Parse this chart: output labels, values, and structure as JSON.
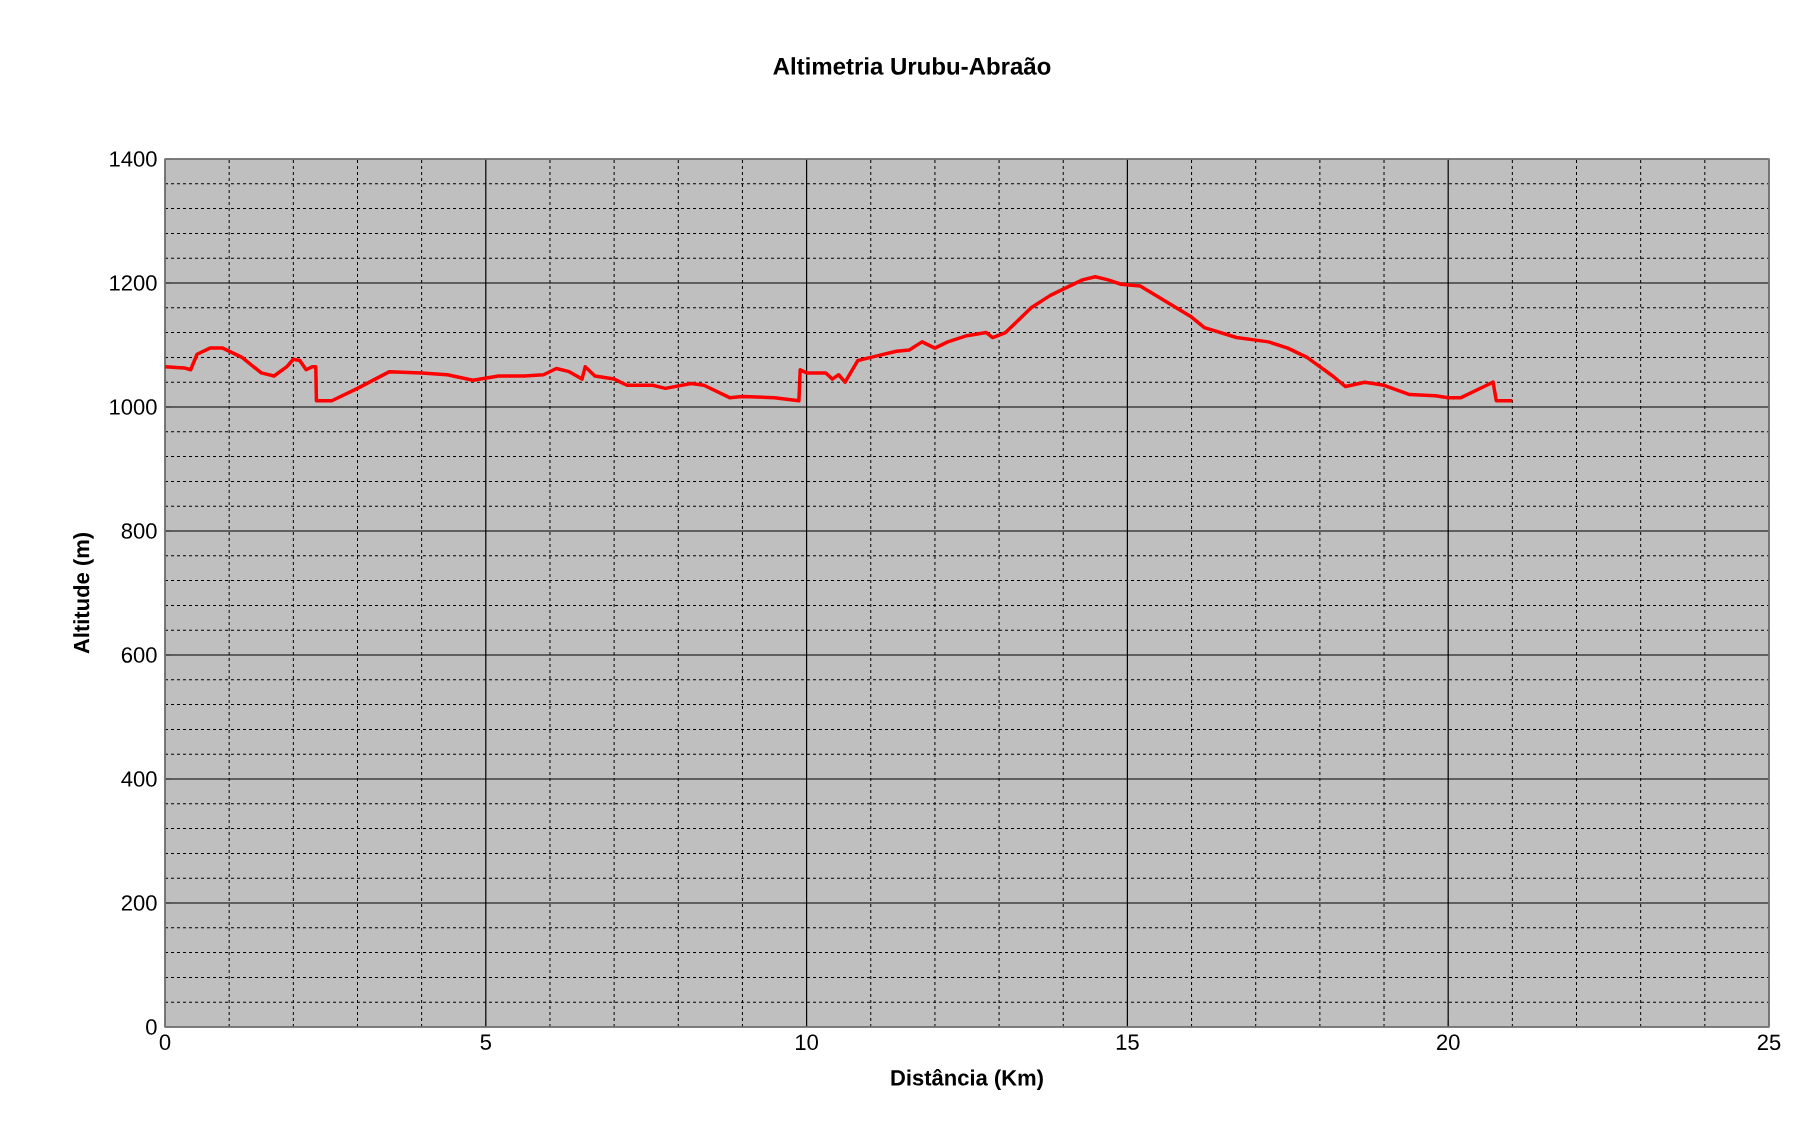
{
  "chart_data": {
    "type": "line",
    "title": "Altimetria Urubu-Abraão",
    "xlabel": "Distância (Km)",
    "ylabel": "Altitude (m)",
    "x": [
      0,
      0.3,
      0.4,
      0.5,
      0.7,
      0.9,
      1.2,
      1.5,
      1.7,
      1.9,
      2.0,
      2.1,
      2.2,
      2.3,
      2.35,
      2.36,
      2.6,
      3.0,
      3.5,
      4.0,
      4.4,
      4.8,
      5.2,
      5.6,
      5.9,
      6.1,
      6.3,
      6.5,
      6.55,
      6.7,
      7.0,
      7.2,
      7.6,
      7.8,
      8.2,
      8.4,
      8.8,
      9.0,
      9.5,
      9.88,
      9.9,
      10.0,
      10.3,
      10.4,
      10.5,
      10.6,
      10.8,
      11.0,
      11.4,
      11.6,
      11.8,
      12.0,
      12.2,
      12.5,
      12.8,
      12.9,
      13.1,
      13.3,
      13.5,
      13.8,
      14.0,
      14.3,
      14.5,
      14.7,
      14.9,
      15.2,
      15.6,
      16.0,
      16.2,
      16.7,
      17.2,
      17.5,
      17.8,
      18.2,
      18.4,
      18.7,
      19.0,
      19.4,
      19.8,
      20.0,
      20.2,
      20.6,
      20.7,
      20.75,
      21.0
    ],
    "series": [
      {
        "color": "#ff0000",
        "values": [
          1065,
          1063,
          1060,
          1085,
          1095,
          1095,
          1080,
          1055,
          1050,
          1065,
          1077,
          1075,
          1060,
          1065,
          1065,
          1010,
          1010,
          1030,
          1057,
          1055,
          1052,
          1043,
          1050,
          1050,
          1052,
          1062,
          1057,
          1045,
          1065,
          1050,
          1045,
          1035,
          1035,
          1030,
          1038,
          1035,
          1015,
          1017,
          1015,
          1010,
          1060,
          1055,
          1055,
          1045,
          1052,
          1040,
          1075,
          1080,
          1090,
          1092,
          1105,
          1095,
          1105,
          1115,
          1120,
          1112,
          1120,
          1140,
          1160,
          1180,
          1190,
          1205,
          1210,
          1205,
          1198,
          1195,
          1170,
          1145,
          1128,
          1112,
          1105,
          1095,
          1080,
          1050,
          1033,
          1040,
          1035,
          1020,
          1018,
          1015,
          1015,
          1035,
          1040,
          1010,
          1010
        ]
      }
    ],
    "xlim": [
      0,
      25
    ],
    "ylim": [
      0,
      1400
    ],
    "xticks": [
      0,
      5,
      10,
      15,
      20,
      25
    ],
    "yticks": [
      0,
      200,
      400,
      600,
      800,
      1000,
      1200,
      1400
    ],
    "grid": true,
    "marker": "none",
    "line_style": "solid"
  }
}
